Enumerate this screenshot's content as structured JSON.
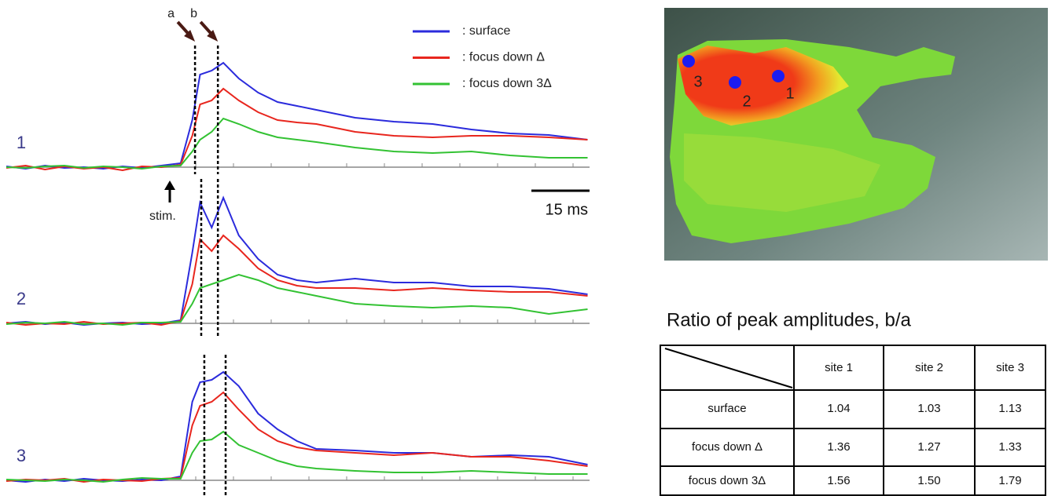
{
  "figure": {
    "legend": [
      {
        "name": ": surface",
        "color": "#2b2bdc"
      },
      {
        "name": ": focus down Δ",
        "color": "#e8261e"
      },
      {
        "name": ": focus down 3Δ",
        "color": "#33c233"
      }
    ],
    "peak_labels": [
      "a",
      "b"
    ],
    "stim_label": "stim.",
    "scale_bar": {
      "value": 15,
      "label": "15 ms"
    },
    "time_ms": [
      0,
      5,
      10,
      15,
      20,
      25,
      30,
      35,
      40,
      45,
      48,
      50,
      53,
      56,
      60,
      65,
      70,
      75,
      80,
      90,
      100,
      110,
      120,
      130,
      140,
      150
    ],
    "panels": [
      {
        "label": "1",
        "a_ms": 48.7,
        "b_ms": 54.6,
        "traces": [
          [
            1,
            -2,
            2,
            -1,
            0,
            -2,
            1,
            -1,
            2,
            5,
            60,
            118,
            123,
            133,
            113,
            95,
            83,
            78,
            73,
            63,
            58,
            55,
            48,
            43,
            41,
            35
          ],
          [
            -1,
            2,
            -3,
            1,
            -2,
            0,
            -4,
            1,
            0,
            3,
            40,
            80,
            85,
            100,
            85,
            70,
            60,
            57,
            55,
            45,
            40,
            38,
            40,
            40,
            38,
            35
          ],
          [
            0,
            -1,
            1,
            2,
            -1,
            1,
            0,
            -2,
            1,
            2,
            20,
            35,
            45,
            62,
            55,
            45,
            38,
            35,
            32,
            25,
            20,
            18,
            20,
            15,
            12,
            12
          ]
        ]
      },
      {
        "label": "2",
        "a_ms": 50.3,
        "b_ms": 54.6,
        "traces": [
          [
            0,
            2,
            -1,
            1,
            -2,
            0,
            1,
            -1,
            0,
            4,
            90,
            154,
            122,
            160,
            112,
            82,
            62,
            55,
            52,
            57,
            52,
            52,
            47,
            47,
            44,
            37
          ],
          [
            1,
            -2,
            0,
            -1,
            2,
            -1,
            0,
            1,
            -2,
            3,
            50,
            107,
            92,
            112,
            95,
            70,
            55,
            48,
            45,
            45,
            42,
            45,
            42,
            40,
            40,
            35
          ],
          [
            -1,
            1,
            0,
            2,
            -1,
            0,
            -2,
            1,
            1,
            2,
            25,
            45,
            50,
            55,
            62,
            55,
            45,
            40,
            35,
            25,
            22,
            20,
            22,
            20,
            12,
            18
          ]
        ]
      },
      {
        "label": "3",
        "a_ms": 51.1,
        "b_ms": 56.6,
        "traces": [
          [
            0,
            -2,
            1,
            -1,
            2,
            0,
            -1,
            1,
            0,
            5,
            100,
            125,
            128,
            138,
            120,
            85,
            65,
            50,
            40,
            38,
            35,
            35,
            30,
            32,
            30,
            20
          ],
          [
            -1,
            1,
            0,
            2,
            -2,
            1,
            0,
            -1,
            2,
            3,
            70,
            95,
            100,
            112,
            90,
            65,
            50,
            42,
            38,
            35,
            32,
            35,
            30,
            30,
            25,
            18
          ],
          [
            1,
            0,
            -1,
            1,
            0,
            -2,
            1,
            3,
            2,
            2,
            35,
            50,
            52,
            62,
            45,
            35,
            25,
            18,
            15,
            12,
            10,
            10,
            12,
            10,
            8,
            8
          ]
        ]
      }
    ],
    "map_sites": [
      "1",
      "2",
      "3"
    ],
    "table": {
      "title": "Ratio of peak amplitudes, b/a",
      "columns": [
        "site 1",
        "site 2",
        "site 3"
      ],
      "rows": [
        {
          "label": "surface",
          "cells": [
            "1.04",
            "1.03",
            "1.13"
          ]
        },
        {
          "label": "focus down Δ",
          "cells": [
            "1.36",
            "1.27",
            "1.33"
          ]
        },
        {
          "label": "focus down 3Δ",
          "cells": [
            "1.56",
            "1.50",
            "1.79"
          ]
        }
      ]
    }
  }
}
